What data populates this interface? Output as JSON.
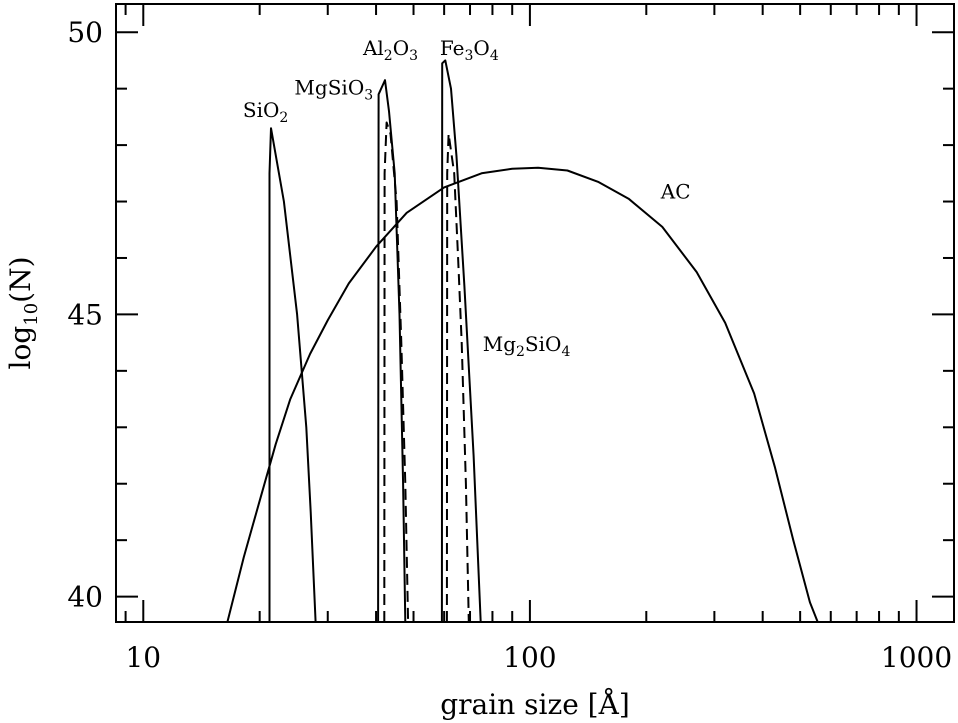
{
  "chart_data": {
    "type": "line",
    "title": "",
    "xlabel": "grain size [Å]",
    "ylabel": "log10(N)",
    "ylabel_parts": {
      "base": "log",
      "sub": "10",
      "rest": "(N)"
    },
    "x_scale": "log",
    "xlim": [
      8.5,
      1250
    ],
    "ylim": [
      39.55,
      50.5
    ],
    "x_ticks_major": [
      10,
      100,
      1000
    ],
    "x_tick_labels": [
      "10",
      "100",
      "1000"
    ],
    "y_ticks_major": [
      40,
      45,
      50
    ],
    "y_tick_labels": [
      "40",
      "45",
      "50"
    ],
    "grid": false,
    "legend": "none",
    "curves": [
      {
        "id": "sio2",
        "label": {
          "parts": [
            [
              "Si",
              ""
            ],
            [
              "O",
              ""
            ],
            [
              "2",
              "sub"
            ]
          ],
          "at": [
            18.1,
            48.5
          ]
        },
        "style": "solid",
        "points": [
          [
            21.2,
            39.5
          ],
          [
            21.2,
            47.5
          ],
          [
            21.4,
            48.3
          ],
          [
            23.1,
            47.0
          ],
          [
            25.0,
            45.0
          ],
          [
            26.4,
            43.0
          ],
          [
            27.1,
            41.5
          ],
          [
            27.9,
            39.5
          ]
        ]
      },
      {
        "id": "mgsio3",
        "label": {
          "parts": [
            [
              "Mg",
              ""
            ],
            [
              "Si",
              ""
            ],
            [
              "O",
              ""
            ],
            [
              "3",
              "sub"
            ]
          ],
          "at": [
            24.6,
            48.9
          ]
        },
        "style": "solid",
        "points": [
          [
            40.5,
            39.5
          ],
          [
            40.6,
            48.9
          ],
          [
            42.2,
            49.15
          ],
          [
            43.2,
            48.6
          ],
          [
            44.7,
            47.5
          ],
          [
            46.0,
            45.0
          ],
          [
            47.0,
            42.0
          ],
          [
            47.6,
            39.5
          ]
        ]
      },
      {
        "id": "al2o3",
        "label": {
          "parts": [
            [
              "Al",
              ""
            ],
            [
              "2",
              "sub"
            ],
            [
              "O",
              ""
            ],
            [
              "3",
              "sub"
            ]
          ],
          "at": [
            37.0,
            49.6
          ]
        },
        "style": "dashed",
        "points": [
          [
            42.0,
            39.5
          ],
          [
            42.1,
            47.5
          ],
          [
            42.6,
            48.4
          ],
          [
            43.6,
            48.2
          ],
          [
            45.2,
            47.0
          ],
          [
            46.5,
            44.5
          ],
          [
            47.6,
            42.0
          ],
          [
            48.4,
            39.5
          ]
        ]
      },
      {
        "id": "fe3o4",
        "label": {
          "parts": [
            [
              "Fe",
              ""
            ],
            [
              "3",
              "sub"
            ],
            [
              "O",
              ""
            ],
            [
              "4",
              "sub"
            ]
          ],
          "at": [
            58.5,
            49.6
          ]
        },
        "style": "solid",
        "points": [
          [
            59.2,
            39.5
          ],
          [
            59.3,
            49.45
          ],
          [
            60.4,
            49.5
          ],
          [
            62.5,
            49.0
          ],
          [
            64.6,
            47.8
          ],
          [
            67.7,
            45.5
          ],
          [
            71.5,
            42.5
          ],
          [
            74.6,
            39.5
          ]
        ]
      },
      {
        "id": "mg2sio4",
        "label": {
          "parts": [
            [
              "Mg",
              ""
            ],
            [
              "2",
              "sub"
            ],
            [
              "Si",
              ""
            ],
            [
              "O",
              ""
            ],
            [
              "4",
              "sub"
            ]
          ],
          "at": [
            75.5,
            44.35
          ]
        },
        "style": "dashed",
        "points": [
          [
            61.0,
            39.5
          ],
          [
            61.1,
            47.5
          ],
          [
            61.6,
            48.2
          ],
          [
            63.7,
            47.5
          ],
          [
            65.2,
            46.0
          ],
          [
            66.6,
            44.5
          ],
          [
            68.3,
            42.0
          ],
          [
            69.5,
            39.5
          ]
        ]
      },
      {
        "id": "ac",
        "label": {
          "parts": [
            [
              "AC",
              ""
            ]
          ],
          "at": [
            218,
            47.05
          ]
        },
        "style": "solid",
        "points": [
          [
            16.5,
            39.5
          ],
          [
            18.2,
            40.7
          ],
          [
            20.0,
            41.7
          ],
          [
            22.0,
            42.7
          ],
          [
            24.0,
            43.5
          ],
          [
            27.0,
            44.3
          ],
          [
            30.0,
            44.9
          ],
          [
            34.0,
            45.55
          ],
          [
            40.0,
            46.2
          ],
          [
            48.0,
            46.8
          ],
          [
            60.0,
            47.25
          ],
          [
            75.0,
            47.5
          ],
          [
            90.0,
            47.58
          ],
          [
            105.0,
            47.6
          ],
          [
            125.0,
            47.55
          ],
          [
            150.0,
            47.35
          ],
          [
            180.0,
            47.05
          ],
          [
            220.0,
            46.55
          ],
          [
            270.0,
            45.75
          ],
          [
            320.0,
            44.85
          ],
          [
            380.0,
            43.6
          ],
          [
            430.0,
            42.3
          ],
          [
            480.0,
            41.0
          ],
          [
            530.0,
            39.9
          ],
          [
            555.0,
            39.5
          ]
        ]
      }
    ]
  }
}
